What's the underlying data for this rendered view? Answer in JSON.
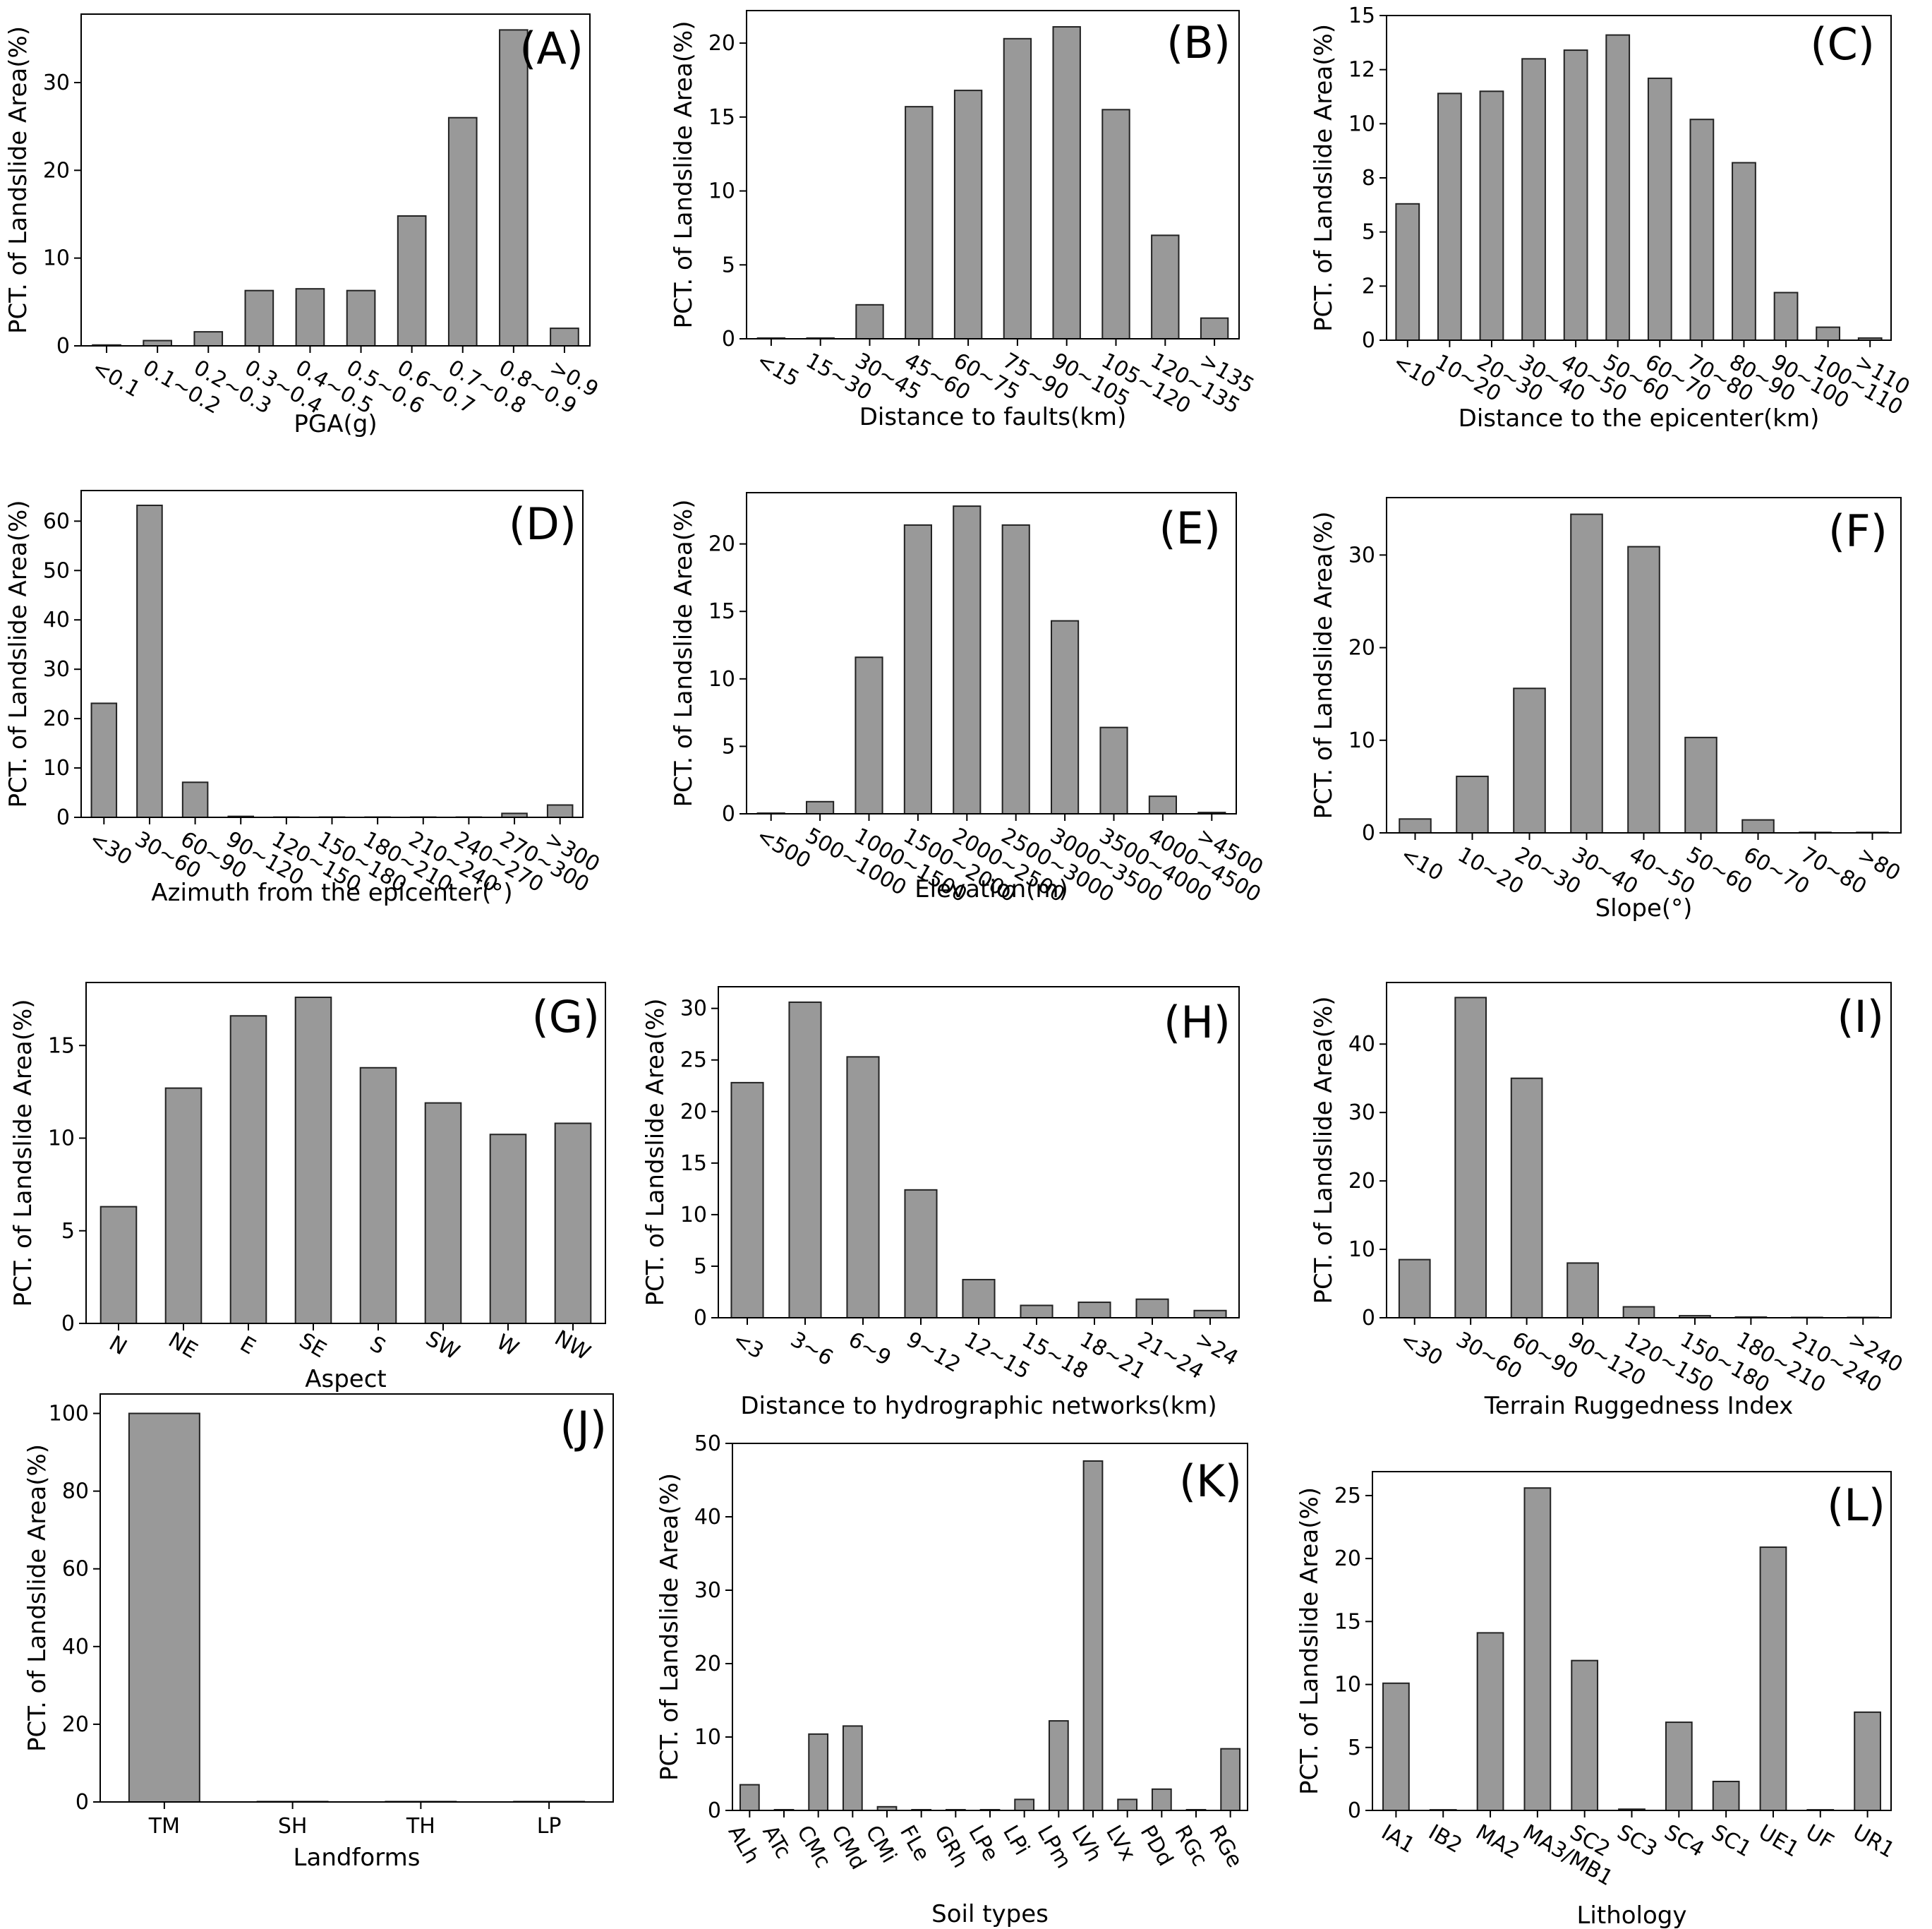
{
  "chart_data": [
    {
      "panel": "(A)",
      "type": "bar",
      "xlabel": "PGA(g)",
      "ylabel": "PCT. of Landslide Area(%)",
      "categories": [
        "<0.1",
        "0.1~0.2",
        "0.2~0.3",
        "0.3~0.4",
        "0.4~0.5",
        "0.5~0.6",
        "0.6~0.7",
        "0.7~0.8",
        "0.8~0.9",
        ">0.9"
      ],
      "values": [
        0.1,
        0.6,
        1.6,
        6.3,
        6.5,
        6.3,
        14.8,
        26.0,
        36.0,
        2.0
      ],
      "ylim": [
        0,
        37.8
      ],
      "yticks": [
        0,
        10,
        20,
        30
      ],
      "ytick_labels": [
        "0",
        "10",
        "20",
        "30"
      ]
    },
    {
      "panel": "(B)",
      "type": "bar",
      "xlabel": "Distance to faults(km)",
      "ylabel": "PCT. of Landslide Area(%)",
      "categories": [
        "<15",
        "15~30",
        "30~45",
        "45~60",
        "60~75",
        "75~90",
        "90~105",
        "105~120",
        "120~135",
        ">135"
      ],
      "values": [
        0.05,
        0.05,
        2.3,
        15.7,
        16.8,
        20.3,
        21.1,
        15.5,
        7.0,
        1.4
      ],
      "ylim": [
        0,
        22.2
      ],
      "yticks": [
        0,
        5,
        10,
        15,
        20
      ],
      "ytick_labels": [
        "0",
        "5",
        "10",
        "15",
        "20"
      ]
    },
    {
      "panel": "(C)",
      "type": "bar",
      "xlabel": "Distance to the epicenter(km)",
      "ylabel": "PCT. of Landslide Area(%)",
      "categories": [
        "<10",
        "10~20",
        "20~30",
        "30~40",
        "40~50",
        "50~60",
        "60~70",
        "70~80",
        "80~90",
        "90~100",
        "100~110",
        ">110"
      ],
      "values": [
        6.3,
        11.4,
        11.5,
        13.0,
        13.4,
        14.1,
        12.1,
        10.2,
        8.2,
        2.2,
        0.6,
        0.1
      ],
      "ylim": [
        0,
        15.0
      ],
      "yticks": [
        0,
        2.5,
        5.0,
        7.5,
        10.0,
        12.5,
        15.0
      ],
      "ytick_labels": [
        "0",
        "2",
        "5",
        "8",
        "10",
        "12",
        "15"
      ]
    },
    {
      "panel": "(D)",
      "type": "bar",
      "xlabel": "Azimuth from the epicenter(°)",
      "ylabel": "PCT. of Landslide Area(%)",
      "categories": [
        "<30",
        "30~60",
        "60~90",
        "90~120",
        "120~150",
        "150~180",
        "180~210",
        "210~240",
        "240~270",
        "270~300",
        ">300"
      ],
      "values": [
        23.1,
        63.2,
        7.1,
        0.2,
        0.05,
        0.05,
        0.05,
        0.05,
        0.05,
        0.8,
        2.5
      ],
      "ylim": [
        0,
        66.2
      ],
      "yticks": [
        0,
        10,
        20,
        30,
        40,
        50,
        60
      ],
      "ytick_labels": [
        "0",
        "10",
        "20",
        "30",
        "40",
        "50",
        "60"
      ]
    },
    {
      "panel": "(E)",
      "type": "bar",
      "xlabel": "Elevation(m)",
      "ylabel": "PCT. of Landslide Area(%)",
      "categories": [
        "<500",
        "500~1000",
        "1000~1500",
        "1500~2000",
        "2000~2500",
        "2500~3000",
        "3000~3500",
        "3500~4000",
        "4000~4500",
        ">4500"
      ],
      "values": [
        0.05,
        0.9,
        11.6,
        21.4,
        22.8,
        21.4,
        14.3,
        6.4,
        1.3,
        0.1
      ],
      "ylim": [
        0,
        23.8
      ],
      "yticks": [
        0,
        5,
        10,
        15,
        20
      ],
      "ytick_labels": [
        "0",
        "5",
        "10",
        "15",
        "20"
      ]
    },
    {
      "panel": "(F)",
      "type": "bar",
      "xlabel": "Slope(°)",
      "ylabel": "PCT. of Landslide Area(%)",
      "categories": [
        "<10",
        "10~20",
        "20~30",
        "30~40",
        "40~50",
        "50~60",
        "60~70",
        "70~80",
        ">80"
      ],
      "values": [
        1.5,
        6.1,
        15.6,
        34.4,
        30.9,
        10.3,
        1.4,
        0.05,
        0.05
      ],
      "ylim": [
        0,
        36.2
      ],
      "yticks": [
        0,
        10,
        20,
        30
      ],
      "ytick_labels": [
        "0",
        "10",
        "20",
        "30"
      ]
    },
    {
      "panel": "(G)",
      "type": "bar",
      "xlabel": "Aspect",
      "ylabel": "PCT. of Landslide Area(%)",
      "categories": [
        "N",
        "NE",
        "E",
        "SE",
        "S",
        "SW",
        "W",
        "NW"
      ],
      "values": [
        6.3,
        12.7,
        16.6,
        17.6,
        13.8,
        11.9,
        10.2,
        10.8
      ],
      "ylim": [
        0,
        18.4
      ],
      "yticks": [
        0,
        5,
        10,
        15
      ],
      "ytick_labels": [
        "0",
        "5",
        "10",
        "15"
      ]
    },
    {
      "panel": "(H)",
      "type": "bar",
      "xlabel": "Distance to hydrographic networks(km)",
      "ylabel": "PCT. of Landslide Area(%)",
      "categories": [
        "<3",
        "3~6",
        "6~9",
        "9~12",
        "12~15",
        "15~18",
        "18~21",
        "21~24",
        ">24"
      ],
      "values": [
        22.8,
        30.6,
        25.3,
        12.4,
        3.7,
        1.2,
        1.5,
        1.8,
        0.7
      ],
      "ylim": [
        0,
        32.1
      ],
      "yticks": [
        0,
        5,
        10,
        15,
        20,
        25,
        30
      ],
      "ytick_labels": [
        "0",
        "5",
        "10",
        "15",
        "20",
        "25",
        "30"
      ]
    },
    {
      "panel": "(I)",
      "type": "bar",
      "xlabel": "Terrain Ruggedness Index",
      "ylabel": "PCT. of Landslide Area(%)",
      "categories": [
        "<30",
        "30~60",
        "60~90",
        "90~120",
        "120~150",
        "150~180",
        "180~210",
        "210~240",
        ">240"
      ],
      "values": [
        8.5,
        46.8,
        35.0,
        8.0,
        1.6,
        0.3,
        0.1,
        0.05,
        0.05
      ],
      "ylim": [
        0,
        49.0
      ],
      "yticks": [
        0,
        10,
        20,
        30,
        40
      ],
      "ytick_labels": [
        "0",
        "10",
        "20",
        "30",
        "40"
      ]
    },
    {
      "panel": "(J)",
      "type": "bar",
      "xlabel": "Landforms",
      "ylabel": "PCT. of Landslide Area(%)",
      "categories": [
        "TM",
        "SH",
        "TH",
        "LP"
      ],
      "values": [
        100.0,
        0.1,
        0.1,
        0.1
      ],
      "ylim": [
        0,
        105.0
      ],
      "yticks": [
        0,
        20,
        40,
        60,
        80,
        100
      ],
      "ytick_labels": [
        "0",
        "20",
        "40",
        "60",
        "80",
        "100"
      ]
    },
    {
      "panel": "(K)",
      "type": "bar",
      "xlabel": "Soil types",
      "ylabel": "PCT. of Landslide Area(%)",
      "categories": [
        "ALh",
        "ATc",
        "CMc",
        "CMd",
        "CMi",
        "FLe",
        "GRh",
        "LPe",
        "LPi",
        "LPm",
        "LVh",
        "LVx",
        "PDd",
        "RGc",
        "RGe"
      ],
      "values": [
        3.5,
        0.1,
        10.4,
        11.5,
        0.5,
        0.1,
        0.1,
        0.1,
        1.5,
        12.2,
        47.6,
        1.5,
        2.9,
        0.1,
        8.4
      ],
      "ylim": [
        0,
        50.0
      ],
      "yticks": [
        0,
        10,
        20,
        30,
        40,
        50
      ],
      "ytick_labels": [
        "0",
        "10",
        "20",
        "30",
        "40",
        "50"
      ]
    },
    {
      "panel": "(L)",
      "type": "bar",
      "xlabel": "Lithology",
      "ylabel": "PCT. of Landslide Area(%)",
      "categories": [
        "IA1",
        "IB2",
        "MA2",
        "MA3/MB1",
        "SC2",
        "SC3",
        "SC4",
        "SC1",
        "UE1",
        "UF",
        "UR1"
      ],
      "values": [
        10.1,
        0.05,
        14.1,
        25.6,
        11.9,
        0.1,
        7.0,
        2.3,
        20.9,
        0.05,
        7.8
      ],
      "ylim": [
        0,
        26.9
      ],
      "yticks": [
        0,
        5,
        10,
        15,
        20,
        25
      ],
      "ytick_labels": [
        "0",
        "5",
        "10",
        "15",
        "20",
        "25"
      ]
    }
  ]
}
